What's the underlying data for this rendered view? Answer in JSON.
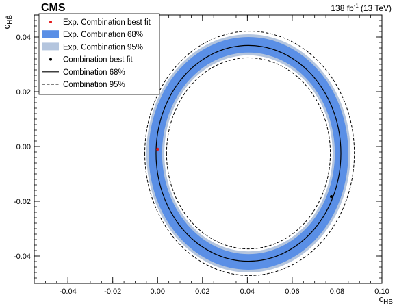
{
  "header": {
    "experiment": "CMS",
    "lumi_value": "138 fb",
    "lumi_exp": "-1",
    "lumi_energy": "(13 TeV)"
  },
  "chart_data": {
    "type": "contour",
    "xlabel_main": "c",
    "xlabel_sub": "HB",
    "ylabel_main": "c",
    "ylabel_sub": "HB̃",
    "xlim": [
      -0.055,
      0.1
    ],
    "ylim": [
      -0.05,
      0.048
    ],
    "xticks": [
      -0.04,
      -0.02,
      0.0,
      0.02,
      0.04,
      0.06,
      0.08,
      0.1
    ],
    "xtick_labels": [
      "-0.04",
      "-0.02",
      "0.00",
      "0.02",
      "0.04",
      "0.06",
      "0.08",
      "0.10"
    ],
    "yticks": [
      -0.04,
      -0.02,
      0.0,
      0.02,
      0.04
    ],
    "ytick_labels": [
      "-0.04",
      "-0.02",
      "0.00",
      "0.02",
      "0.04"
    ],
    "colors": {
      "exp68": "#5a8fe6",
      "exp95": "#b4c5de",
      "exp_best": "#e31a1c",
      "obs_best": "#000000"
    },
    "contours": {
      "exp95": {
        "cx": 0.0405,
        "cy": -0.0025,
        "rx_out": 0.0455,
        "ry_out": 0.0435,
        "rx_in": 0.0375,
        "ry_in": 0.0358
      },
      "exp68": {
        "cx": 0.0405,
        "cy": -0.0025,
        "rx_out": 0.0445,
        "ry_out": 0.0425,
        "rx_in": 0.0385,
        "ry_in": 0.0368
      },
      "obs68": {
        "cx": 0.0405,
        "cy": -0.0025,
        "rx": 0.0412,
        "ry": 0.0394
      },
      "obs95": [
        {
          "cx": 0.041,
          "cy": -0.0025,
          "rx": 0.0467,
          "ry": 0.0446
        },
        {
          "cx": 0.0405,
          "cy": -0.0025,
          "rx": 0.0365,
          "ry": 0.0349
        }
      ]
    },
    "best_fit": {
      "expected": {
        "x": 0.0,
        "y": -0.001
      },
      "observed": {
        "x": 0.0775,
        "y": -0.0183
      }
    },
    "legend": {
      "placement": "top-left",
      "entries": [
        {
          "label": "Exp. Combination best fit",
          "style": "red-dot"
        },
        {
          "label": "Exp. Combination 68%",
          "style": "blue-box"
        },
        {
          "label": "Exp. Combination 95%",
          "style": "lightblue-box"
        },
        {
          "label": "Combination best fit",
          "style": "black-dot"
        },
        {
          "label": "Combination 68%",
          "style": "solid-line"
        },
        {
          "label": "Combination 95%",
          "style": "dashed-line"
        }
      ]
    }
  }
}
